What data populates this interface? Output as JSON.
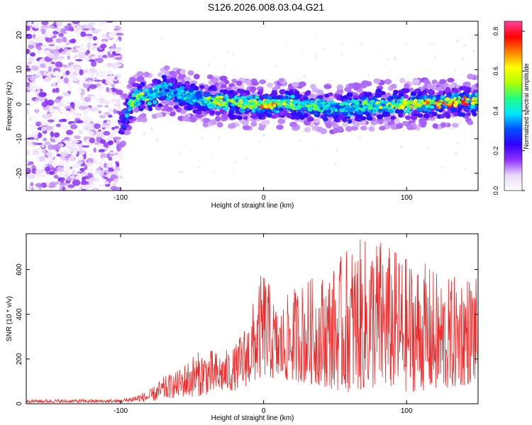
{
  "title": "S126.2026.008.03.04.G21",
  "chart_data": [
    {
      "type": "heatmap",
      "xlabel": "Height of straight line (km)",
      "ylabel": "Frequency (Hz)",
      "xlim": [
        -166,
        150
      ],
      "ylim": [
        -25,
        24
      ],
      "xticks": [
        -100,
        0,
        100
      ],
      "yticks": [
        -20,
        -10,
        0,
        10,
        20
      ],
      "colorbar": {
        "label": "Normalized spectral amplitude",
        "range": [
          0.0,
          0.85
        ],
        "ticks": [
          "0.0",
          "0.2",
          "0.4",
          "0.6",
          "0.8"
        ],
        "colors": [
          "#ffffff",
          "#e8d8f8",
          "#9030ff",
          "#3000ff",
          "#0050ff",
          "#00e8ff",
          "#20ff80",
          "#b0ff00",
          "#ffff00",
          "#ff8000",
          "#ff0000",
          "#ff40a0"
        ]
      },
      "ridge": {
        "x": [
          -100,
          -90,
          -80,
          -70,
          -60,
          -50,
          -40,
          -30,
          -20,
          -10,
          0,
          20,
          40,
          60,
          80,
          100,
          120,
          140,
          150
        ],
        "frequency": [
          -6,
          2,
          2,
          4,
          3,
          2,
          1,
          1,
          0,
          0,
          0,
          0,
          -1,
          -1,
          0,
          0,
          0,
          1,
          1
        ],
        "amplitude": [
          0.2,
          0.6,
          0.5,
          0.4,
          0.4,
          0.45,
          0.5,
          0.6,
          0.5,
          0.6,
          0.7,
          0.6,
          0.45,
          0.45,
          0.55,
          0.6,
          0.7,
          0.75,
          0.6
        ]
      },
      "noise_region": {
        "x": [
          -166,
          -100
        ],
        "frequency": [
          -25,
          24
        ]
      }
    },
    {
      "type": "line",
      "xlabel": "Height of straight line (km)",
      "ylabel": "SNR (10 * v/v)",
      "xlim": [
        -166,
        150
      ],
      "ylim": [
        0,
        760
      ],
      "xticks": [
        -100,
        0,
        100
      ],
      "yticks": [
        0,
        200,
        400,
        600
      ],
      "color": "#ee2a2a",
      "envelope": {
        "x": [
          -166,
          -100,
          -90,
          -80,
          -70,
          -60,
          -50,
          -40,
          -30,
          -20,
          -10,
          0,
          10,
          20,
          30,
          40,
          50,
          60,
          70,
          80,
          90,
          100,
          110,
          120,
          130,
          140,
          150
        ],
        "min": [
          5,
          5,
          8,
          10,
          20,
          30,
          30,
          40,
          50,
          60,
          80,
          120,
          100,
          100,
          90,
          80,
          60,
          50,
          60,
          60,
          60,
          50,
          60,
          50,
          60,
          80,
          100
        ],
        "max": [
          20,
          20,
          40,
          60,
          120,
          150,
          220,
          250,
          230,
          260,
          400,
          620,
          420,
          520,
          560,
          580,
          620,
          720,
          740,
          760,
          700,
          660,
          640,
          600,
          560,
          600,
          560
        ]
      }
    }
  ]
}
